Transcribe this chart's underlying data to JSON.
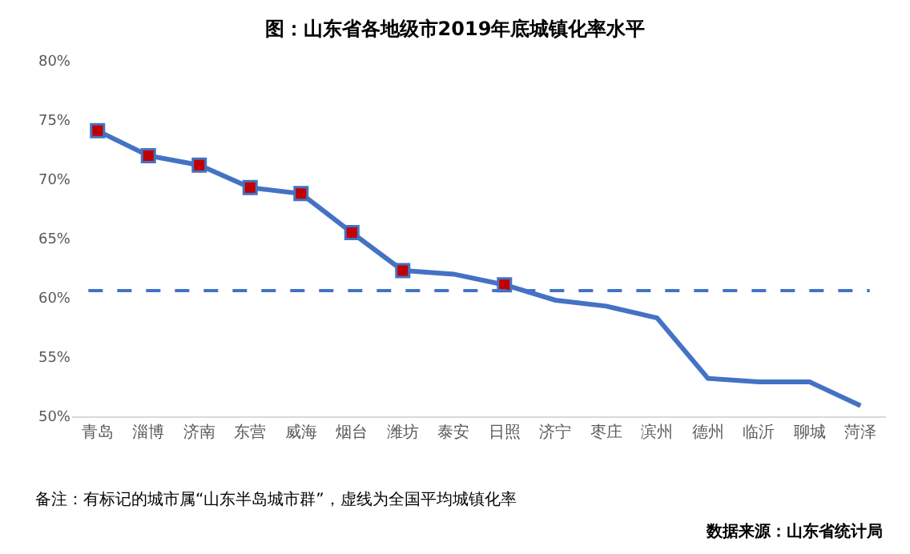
{
  "chart_data": {
    "type": "line",
    "title": "图：山东省各地级市2019年底城镇化率水平",
    "categories": [
      "青岛",
      "淄博",
      "济南",
      "东营",
      "威海",
      "烟台",
      "潍坊",
      "泰安",
      "日照",
      "济宁",
      "枣庄",
      "滨州",
      "德州",
      "临沂",
      "聊城",
      "菏泽"
    ],
    "series": [
      {
        "color": "#4472c4",
        "marker": "none",
        "line_style": "solid",
        "values": [
          74.1,
          72.0,
          71.2,
          69.3,
          68.8,
          65.5,
          62.3,
          62.0,
          61.1,
          59.8,
          59.3,
          58.3,
          53.2,
          52.9,
          52.9,
          50.9
        ]
      },
      {
        "type": "scatter",
        "color": "#c00000",
        "marker": "square",
        "values": [
          74.1,
          72.0,
          71.2,
          69.3,
          68.8,
          65.5,
          62.3,
          null,
          61.1,
          null,
          null,
          null,
          null,
          null,
          null,
          null
        ]
      }
    ],
    "ylim": [
      50,
      80
    ],
    "yticks": [
      {
        "value": 50,
        "label": "50%"
      },
      {
        "value": 55,
        "label": "55%"
      },
      {
        "value": 60,
        "label": "60%"
      },
      {
        "value": 65,
        "label": "65%"
      },
      {
        "value": 70,
        "label": "70%"
      },
      {
        "value": 75,
        "label": "75%"
      },
      {
        "value": 80,
        "label": "80%"
      }
    ],
    "ref_lines": [
      {
        "axis": "y",
        "value": 60.6,
        "color": "#4472c4",
        "line_style": "dashed"
      }
    ],
    "grid": false,
    "annotations": [
      "备注：有标记的城市属“山东半岛城市群”，虚线为全国平均城镇化率",
      "数据来源：山东省统计局"
    ]
  }
}
